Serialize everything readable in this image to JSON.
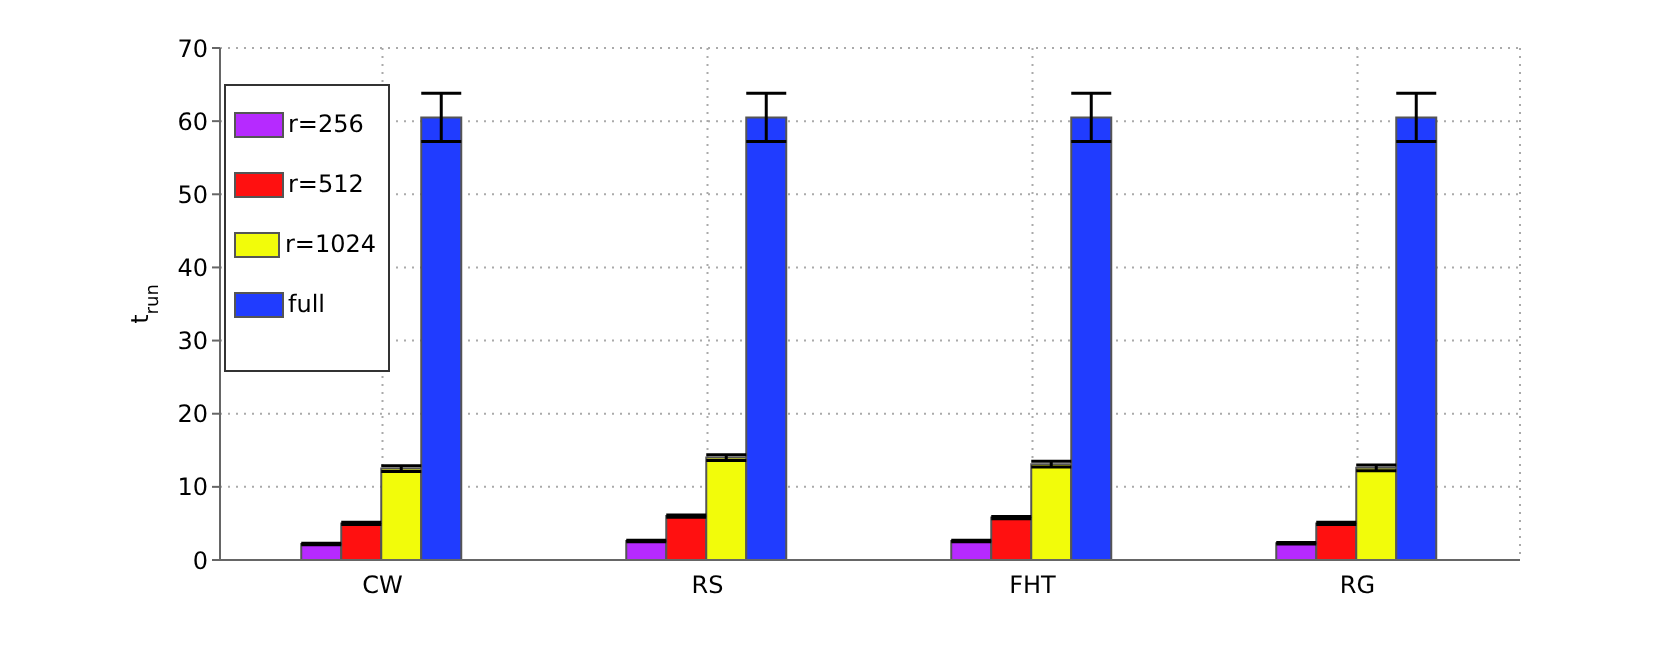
{
  "chart_data": {
    "type": "bar",
    "ylabel": "t$_{run}$",
    "categories": [
      "CW",
      "RS",
      "FHT",
      "RG"
    ],
    "series": [
      {
        "name": "r=256",
        "color": "#b62aff",
        "values": [
          2.2,
          2.6,
          2.6,
          2.3
        ],
        "errors": [
          0.1,
          0.1,
          0.1,
          0.1
        ]
      },
      {
        "name": "r=512",
        "color": "#ff1010",
        "values": [
          5.0,
          6.0,
          5.8,
          5.0
        ],
        "errors": [
          0.15,
          0.15,
          0.15,
          0.15
        ]
      },
      {
        "name": "r=1024",
        "color": "#f2fc0a",
        "values": [
          12.5,
          14.0,
          13.1,
          12.6
        ],
        "errors": [
          0.4,
          0.4,
          0.4,
          0.4
        ]
      },
      {
        "name": "full",
        "color": "#203cff",
        "values": [
          60.5,
          60.5,
          60.5,
          60.5
        ],
        "errors": [
          3.3,
          3.3,
          3.3,
          3.3
        ]
      }
    ],
    "ylim": [
      0,
      70
    ],
    "yticks": [
      0,
      10,
      20,
      30,
      40,
      50,
      60,
      70
    ],
    "grid": true,
    "legend": "top left"
  }
}
